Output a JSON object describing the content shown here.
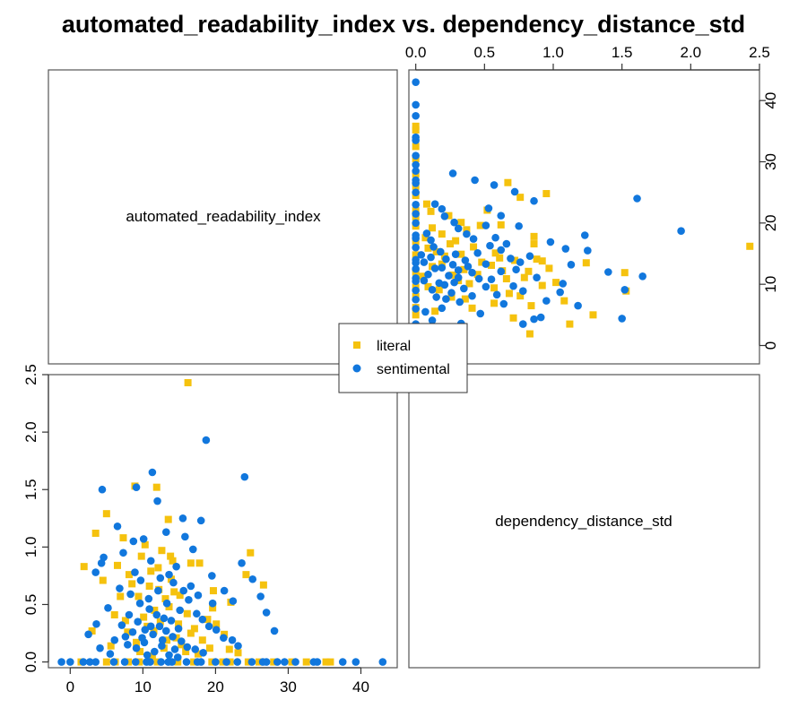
{
  "chart_data": {
    "type": "scatter",
    "title": "automated_readability_index vs. dependency_distance_std",
    "variables": [
      "automated_readability_index",
      "dependency_distance_std"
    ],
    "colors": {
      "literal": "#F5C20E",
      "sentimental": "#1177DD"
    },
    "legend": {
      "position": "center",
      "entries": [
        "literal",
        "sentimental"
      ]
    },
    "axes": {
      "automated_readability_index": {
        "range": [
          -3,
          45
        ],
        "ticks": [
          0,
          10,
          20,
          30,
          40
        ]
      },
      "dependency_distance_std": {
        "range": [
          -0.05,
          2.5
        ],
        "ticks": [
          0.0,
          0.5,
          1.0,
          1.5,
          2.0,
          2.5
        ]
      }
    },
    "series": [
      {
        "name": "literal",
        "marker": "square",
        "points": [
          [
            16.2,
            2.43
          ],
          [
            8.9,
            1.53
          ],
          [
            11.9,
            1.52
          ],
          [
            13.5,
            1.24
          ],
          [
            5.0,
            1.29
          ],
          [
            3.5,
            1.12
          ],
          [
            7.3,
            1.08
          ],
          [
            10.3,
            1.02
          ],
          [
            12.6,
            0.97
          ],
          [
            14.1,
            0.88
          ],
          [
            9.8,
            0.92
          ],
          [
            6.5,
            0.84
          ],
          [
            11.1,
            0.79
          ],
          [
            17.8,
            0.86
          ],
          [
            24.8,
            0.95
          ],
          [
            1.9,
            0.83
          ],
          [
            4.5,
            0.71
          ],
          [
            8.5,
            0.68
          ],
          [
            12.2,
            0.63
          ],
          [
            15.1,
            0.58
          ],
          [
            13.6,
            0.48
          ],
          [
            19.7,
            0.62
          ],
          [
            22.1,
            0.52
          ],
          [
            26.6,
            0.67
          ],
          [
            3.0,
            0.27
          ],
          [
            6.1,
            0.41
          ],
          [
            7.6,
            0.36
          ],
          [
            10.6,
            0.31
          ],
          [
            11.5,
            0.27
          ],
          [
            14.6,
            0.21
          ],
          [
            16.6,
            0.25
          ],
          [
            18.2,
            0.19
          ],
          [
            20.1,
            0.33
          ],
          [
            21.2,
            0.24
          ],
          [
            9.1,
            0.17
          ],
          [
            5.6,
            0.14
          ],
          [
            12.9,
            0.12
          ],
          [
            15.9,
            0.09
          ],
          [
            17.6,
            0.07
          ],
          [
            19.2,
            0.12
          ],
          [
            23.1,
            0.08
          ],
          [
            13.1,
            0.55
          ],
          [
            11.6,
            0.45
          ],
          [
            10.1,
            0.39
          ],
          [
            14.9,
            0.33
          ],
          [
            9.4,
            0.57
          ],
          [
            7.9,
            0.26
          ],
          [
            13.9,
            0.72
          ],
          [
            16.1,
            0.42
          ],
          [
            18.9,
            0.37
          ],
          [
            8.1,
            0.76
          ],
          [
            12.1,
            0.82
          ],
          [
            10.9,
            0.66
          ],
          [
            6.9,
            0.57
          ],
          [
            24.2,
            0.76
          ],
          [
            21.9,
            0.11
          ],
          [
            19.6,
            0.47
          ],
          [
            13.3,
            0.19
          ],
          [
            11.3,
            0.05
          ],
          [
            15.3,
            0.15
          ],
          [
            9.6,
            0.09
          ],
          [
            17.1,
            0.29
          ],
          [
            14.3,
            0.61
          ],
          [
            12.4,
            0.35
          ],
          [
            1.5,
            0.0
          ],
          [
            5.0,
            0.0
          ],
          [
            9.5,
            0.0
          ],
          [
            14.8,
            0.0
          ],
          [
            19.5,
            0.0
          ],
          [
            22.0,
            0.0
          ],
          [
            24.5,
            0.0
          ],
          [
            26.0,
            0.0
          ],
          [
            30.5,
            0.0
          ],
          [
            32.5,
            0.0
          ],
          [
            35.2,
            0.0
          ],
          [
            35.8,
            0.0
          ],
          [
            8.0,
            0.0
          ],
          [
            12.0,
            0.0
          ],
          [
            17.0,
            0.0
          ],
          [
            21.0,
            0.0
          ],
          [
            28.0,
            0.0
          ],
          [
            6.2,
            0.0
          ],
          [
            16.6,
            0.86
          ],
          [
            13.8,
            0.92
          ]
        ]
      },
      {
        "name": "sentimental",
        "marker": "circle",
        "points": [
          [
            18.7,
            1.93
          ],
          [
            11.3,
            1.65
          ],
          [
            24.0,
            1.61
          ],
          [
            4.4,
            1.5
          ],
          [
            9.1,
            1.52
          ],
          [
            12.0,
            1.4
          ],
          [
            15.5,
            1.25
          ],
          [
            18.0,
            1.23
          ],
          [
            6.5,
            1.18
          ],
          [
            13.2,
            1.13
          ],
          [
            10.1,
            1.07
          ],
          [
            8.7,
            1.05
          ],
          [
            15.8,
            1.09
          ],
          [
            3.5,
            0.78
          ],
          [
            4.3,
            0.86
          ],
          [
            4.6,
            0.91
          ],
          [
            7.3,
            0.95
          ],
          [
            11.1,
            0.88
          ],
          [
            14.6,
            0.83
          ],
          [
            16.9,
            0.98
          ],
          [
            19.5,
            0.75
          ],
          [
            23.6,
            0.86
          ],
          [
            25.1,
            0.72
          ],
          [
            26.2,
            0.57
          ],
          [
            27.0,
            0.43
          ],
          [
            28.1,
            0.27
          ],
          [
            21.2,
            0.62
          ],
          [
            22.4,
            0.53
          ],
          [
            2.5,
            0.24
          ],
          [
            3.6,
            0.33
          ],
          [
            5.2,
            0.47
          ],
          [
            6.8,
            0.64
          ],
          [
            8.3,
            0.59
          ],
          [
            9.7,
            0.71
          ],
          [
            10.8,
            0.55
          ],
          [
            12.1,
            0.62
          ],
          [
            13.3,
            0.51
          ],
          [
            14.2,
            0.69
          ],
          [
            15.1,
            0.45
          ],
          [
            16.3,
            0.54
          ],
          [
            17.4,
            0.42
          ],
          [
            18.2,
            0.37
          ],
          [
            19.1,
            0.31
          ],
          [
            20.1,
            0.28
          ],
          [
            21.1,
            0.21
          ],
          [
            22.3,
            0.19
          ],
          [
            23.1,
            0.14
          ],
          [
            7.1,
            0.32
          ],
          [
            8.1,
            0.41
          ],
          [
            9.3,
            0.35
          ],
          [
            10.3,
            0.28
          ],
          [
            11.4,
            0.24
          ],
          [
            12.3,
            0.31
          ],
          [
            13.2,
            0.27
          ],
          [
            14.1,
            0.22
          ],
          [
            15.3,
            0.18
          ],
          [
            16.1,
            0.13
          ],
          [
            17.2,
            0.11
          ],
          [
            18.3,
            0.08
          ],
          [
            6.1,
            0.19
          ],
          [
            7.9,
            0.15
          ],
          [
            9.1,
            0.12
          ],
          [
            10.2,
            0.17
          ],
          [
            11.6,
            0.09
          ],
          [
            12.6,
            0.14
          ],
          [
            13.6,
            0.06
          ],
          [
            14.8,
            0.04
          ],
          [
            5.5,
            0.07
          ],
          [
            4.1,
            0.12
          ],
          [
            9.6,
            0.51
          ],
          [
            10.9,
            0.46
          ],
          [
            11.9,
            0.41
          ],
          [
            12.9,
            0.38
          ],
          [
            13.9,
            0.36
          ],
          [
            14.9,
            0.29
          ],
          [
            8.6,
            0.26
          ],
          [
            7.6,
            0.22
          ],
          [
            8.9,
            0.78
          ],
          [
            12.4,
            0.73
          ],
          [
            13.6,
            0.76
          ],
          [
            15.6,
            0.62
          ],
          [
            17.6,
            0.58
          ],
          [
            19.6,
            0.51
          ],
          [
            16.6,
            0.66
          ],
          [
            11.1,
            0.31
          ],
          [
            9.9,
            0.21
          ],
          [
            12.7,
            0.19
          ],
          [
            14.4,
            0.11
          ],
          [
            10.6,
            0.06
          ],
          [
            0.0,
            0.0
          ],
          [
            -1.2,
            0.0
          ],
          [
            1.8,
            0.0
          ],
          [
            3.5,
            0.0
          ],
          [
            6.0,
            0.0
          ],
          [
            7.5,
            0.0
          ],
          [
            9.0,
            0.0
          ],
          [
            10.5,
            0.0
          ],
          [
            12.5,
            0.0
          ],
          [
            14.0,
            0.0
          ],
          [
            16.0,
            0.0
          ],
          [
            18.0,
            0.0
          ],
          [
            20.0,
            0.0
          ],
          [
            21.5,
            0.0
          ],
          [
            23.0,
            0.0
          ],
          [
            25.0,
            0.0
          ],
          [
            27.0,
            0.0
          ],
          [
            29.5,
            0.0
          ],
          [
            31.0,
            0.0
          ],
          [
            33.5,
            0.0
          ],
          [
            37.5,
            0.0
          ],
          [
            39.3,
            0.0
          ],
          [
            43.0,
            0.0
          ],
          [
            11.0,
            0.0
          ],
          [
            13.5,
            0.0
          ],
          [
            17.5,
            0.0
          ],
          [
            26.5,
            0.0
          ],
          [
            28.5,
            0.0
          ],
          [
            34.0,
            0.0
          ],
          [
            2.7,
            0.0
          ]
        ]
      }
    ]
  }
}
